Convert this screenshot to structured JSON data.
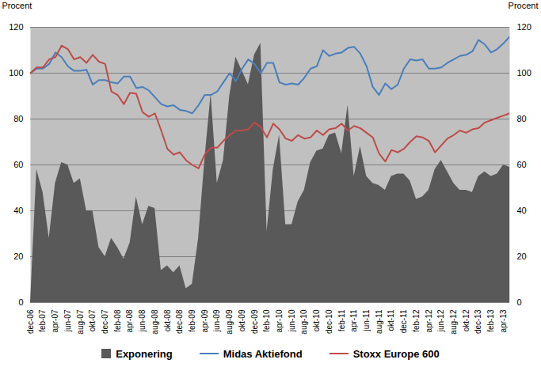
{
  "chart_data": {
    "type": "line",
    "categories": [
      "dec-06",
      null,
      "feb-07",
      null,
      "apr-07",
      null,
      "jun-07",
      null,
      "aug-07",
      null,
      "okt-07",
      null,
      "dec-07",
      null,
      "feb-08",
      null,
      "apr-08",
      null,
      "jun-08",
      null,
      "aug-08",
      null,
      "okt-08",
      null,
      "dec-08",
      null,
      "feb-09",
      null,
      "apr-09",
      null,
      "jun-09",
      null,
      "aug-09",
      null,
      "okt-09",
      null,
      "dec-09",
      null,
      "feb-10",
      null,
      "apr-10",
      null,
      "jun-10",
      null,
      "aug-10",
      null,
      "okt-10",
      null,
      "dec-10",
      null,
      "feb-11",
      null,
      "apr-11",
      null,
      "jun-11",
      null,
      "aug-11",
      null,
      "okt-11",
      null,
      "dec-11",
      null,
      "feb-12",
      null,
      "apr-12",
      null,
      "jun-12",
      null,
      "aug-12",
      null,
      "okt-12",
      null,
      "dec-13",
      null,
      "feb-13",
      null,
      "apr-13",
      null
    ],
    "series": [
      {
        "name": "Exponering",
        "type": "area",
        "color": "#595959",
        "values": [
          0,
          58,
          48,
          28,
          52,
          61,
          60,
          52,
          54,
          40,
          40,
          24,
          20,
          28,
          24,
          19,
          26,
          46,
          34,
          42,
          41,
          14,
          16,
          13,
          16,
          6,
          8,
          28,
          62,
          91,
          52,
          62,
          90,
          107,
          101,
          95,
          108,
          113,
          31,
          58,
          73,
          34,
          34,
          44,
          49,
          61,
          66,
          67,
          73,
          74,
          65,
          86,
          55,
          68,
          55,
          52,
          51,
          49,
          55,
          56,
          56,
          53,
          45,
          46,
          49,
          58,
          62,
          57,
          52,
          49,
          49,
          48,
          55,
          57,
          55,
          56,
          60,
          59
        ]
      },
      {
        "name": "Midas Aktiefond",
        "type": "line",
        "color": "#4a7ebb",
        "values": [
          100,
          102,
          102,
          104,
          109,
          107,
          103,
          101,
          101,
          101.5,
          95,
          97,
          97,
          96,
          95.5,
          98.5,
          98.5,
          93.5,
          94,
          92.5,
          89.5,
          86.5,
          85.5,
          86,
          84,
          83.5,
          82.5,
          86,
          90.5,
          90.5,
          92,
          96,
          100,
          96.5,
          102,
          106,
          104,
          100,
          104.5,
          104.5,
          96,
          95,
          95.5,
          95,
          98,
          102,
          103,
          110,
          107.5,
          108.5,
          109,
          111,
          111.5,
          108.5,
          103,
          94,
          90.5,
          95.5,
          93,
          95,
          102,
          106,
          105.5,
          106,
          102,
          102,
          102.5,
          104.5,
          106,
          107.5,
          108,
          109.5,
          114.5,
          112.5,
          109,
          110.5,
          113,
          116
        ]
      },
      {
        "name": "Stoxx Europe 600",
        "type": "line",
        "color": "#be4b48",
        "values": [
          100,
          102.5,
          102.5,
          106,
          107,
          112,
          110.5,
          106,
          107,
          104.5,
          108,
          105,
          104,
          92,
          90.5,
          86.5,
          91.5,
          91,
          83,
          81,
          82.5,
          75,
          67,
          64.5,
          65.5,
          62,
          60,
          58.5,
          64.5,
          67.5,
          67.5,
          70.5,
          73,
          75,
          75,
          75.5,
          78.5,
          76.5,
          72,
          78,
          75.5,
          71.5,
          70.5,
          73,
          71.5,
          72,
          75,
          73,
          75.5,
          76,
          78,
          75,
          77,
          76,
          74,
          72,
          65,
          61.5,
          66.5,
          65.5,
          67,
          70,
          72.5,
          72,
          70.5,
          65.5,
          68.5,
          71.5,
          73,
          75,
          74,
          75.5,
          76,
          78.5,
          79.5,
          80.5,
          81.5,
          82.5
        ]
      }
    ],
    "ylabel": "Procent",
    "ylim": [
      0,
      120
    ],
    "yticks": [
      0,
      20,
      40,
      60,
      80,
      100,
      120
    ],
    "y2label": "Procent",
    "y2lim": [
      0,
      120
    ],
    "y2ticks": [
      0,
      20,
      40,
      60,
      80,
      100,
      120
    ],
    "grid": true,
    "legend": "bottom"
  }
}
